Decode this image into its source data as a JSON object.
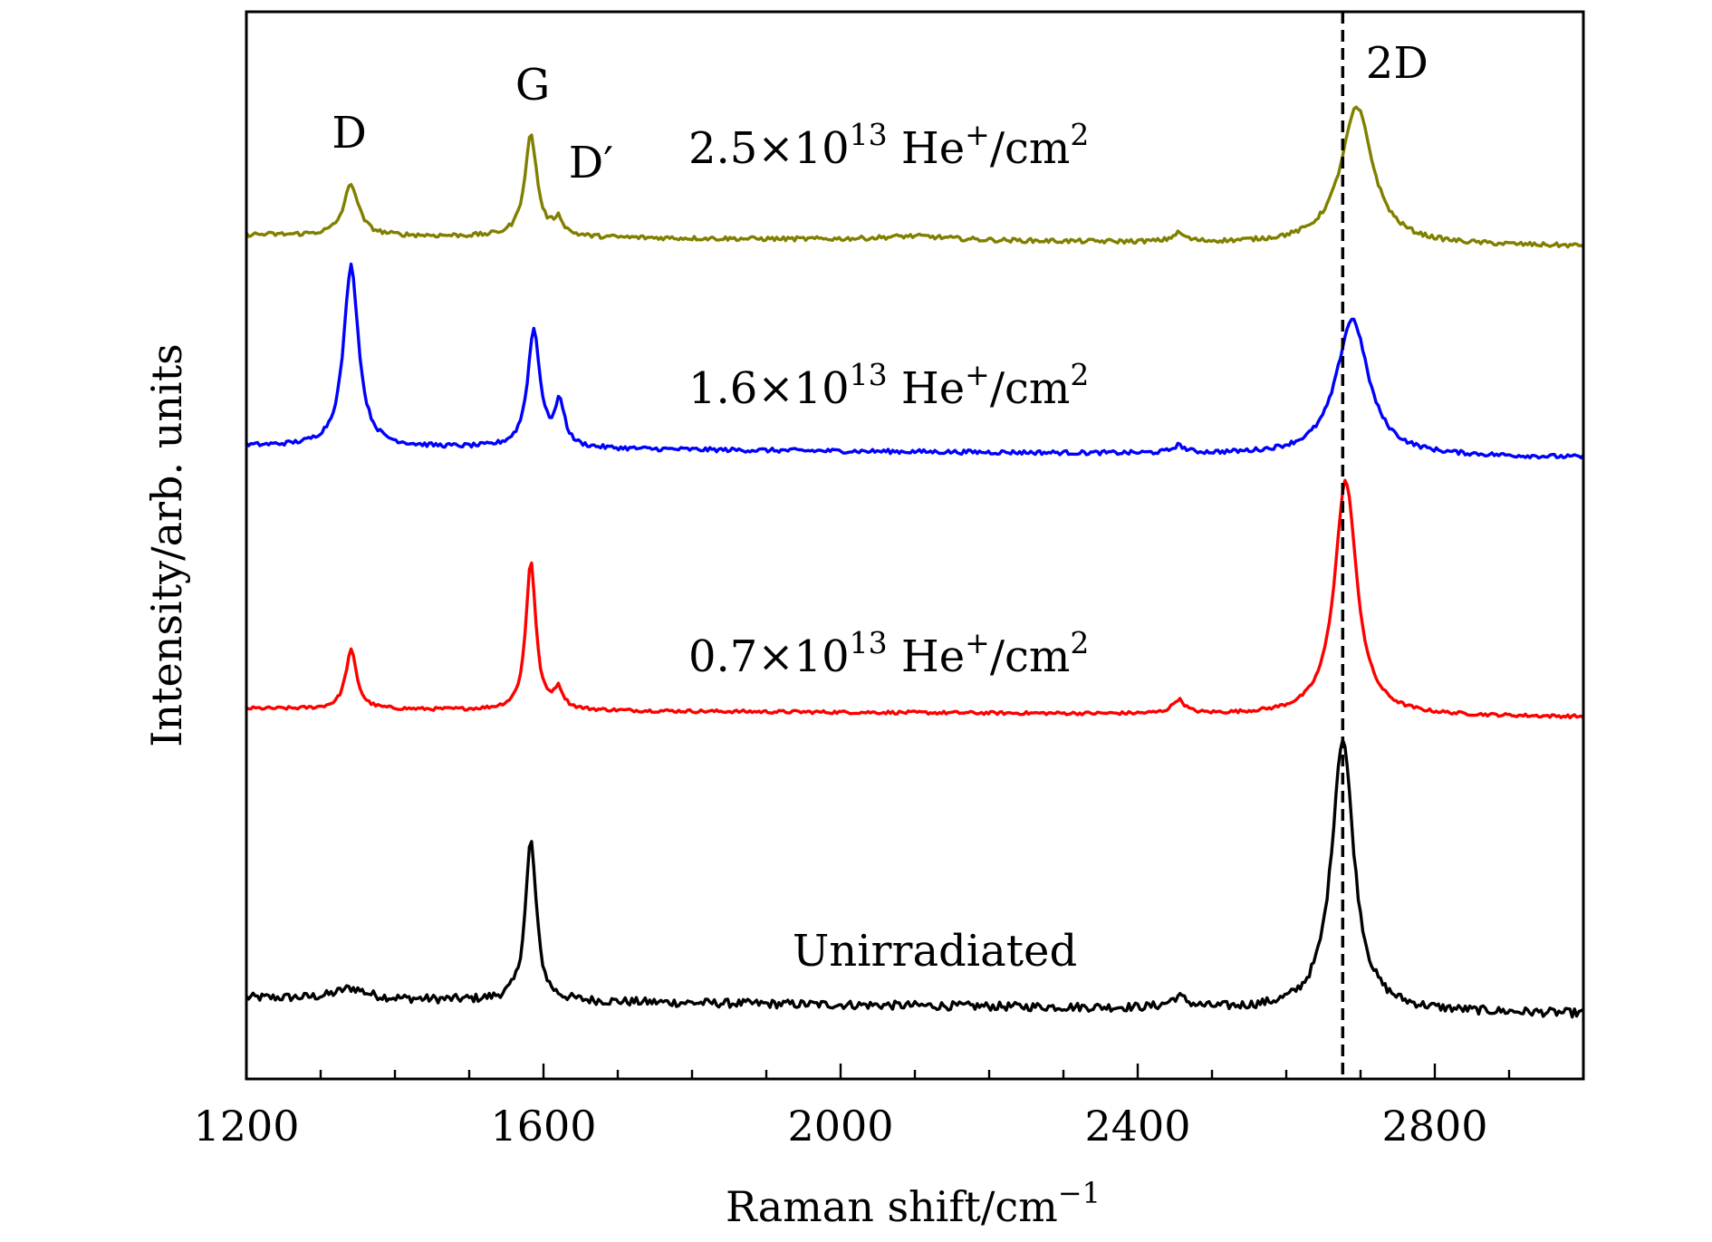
{
  "chart_data": {
    "type": "line",
    "xlabel": "Raman shift/cm",
    "xlabel_sup": "−1",
    "ylabel": "Intensity/arb. units",
    "xlim": [
      1200,
      3000
    ],
    "ylim": [
      0,
      1
    ],
    "x_ticks": [
      "1200",
      "1600",
      "2000",
      "2400",
      "2800"
    ],
    "x_tick_values": [
      1200,
      1600,
      2000,
      2400,
      2800
    ],
    "x_minor_step": 100,
    "y_ticks_shown": false,
    "reference_line": {
      "x": 2676,
      "style": "dashed",
      "label": "2D"
    },
    "peak_labels": [
      {
        "text": "D",
        "x": 1341
      },
      {
        "text": "G",
        "x": 1583
      },
      {
        "text": "D′",
        "x": 1620
      },
      {
        "text": "2D",
        "x": 2676
      }
    ],
    "series": [
      {
        "name": "Unirradiated",
        "label_parts": {
          "text": "Unirradiated"
        },
        "color": "#000000",
        "baseline": 0.076,
        "baseline_end": 0.061,
        "noise": 0.004,
        "peaks": [
          {
            "center": 1341,
            "height": 0.01,
            "width": 25
          },
          {
            "center": 1583,
            "height": 0.15,
            "width": 9
          },
          {
            "center": 2455,
            "height": 0.01,
            "width": 14
          },
          {
            "center": 2676,
            "height": 0.255,
            "width": 18
          }
        ]
      },
      {
        "name": "0.7×10^13 He+/cm2",
        "label_parts": {
          "mantissa": "0.7",
          "exp": "13",
          "ion": "He",
          "charge": "+",
          "unit": "/cm",
          "unit_exp": "2"
        },
        "color": "#ff0000",
        "baseline": 0.347,
        "baseline_end": 0.339,
        "noise": 0.0015,
        "peaks": [
          {
            "center": 1341,
            "height": 0.055,
            "width": 9
          },
          {
            "center": 1583,
            "height": 0.14,
            "width": 8
          },
          {
            "center": 1620,
            "height": 0.018,
            "width": 8
          },
          {
            "center": 2455,
            "height": 0.013,
            "width": 10
          },
          {
            "center": 2680,
            "height": 0.22,
            "width": 18
          }
        ]
      },
      {
        "name": "1.6×10^13 He+/cm2",
        "label_parts": {
          "mantissa": "1.6",
          "exp": "13",
          "ion": "He",
          "charge": "+",
          "unit": "/cm",
          "unit_exp": "2"
        },
        "color": "#0000ff",
        "baseline": 0.593,
        "baseline_end": 0.582,
        "noise": 0.002,
        "peaks": [
          {
            "center": 1341,
            "height": 0.17,
            "width": 12
          },
          {
            "center": 1587,
            "height": 0.11,
            "width": 10
          },
          {
            "center": 1622,
            "height": 0.04,
            "width": 8
          },
          {
            "center": 2455,
            "height": 0.007,
            "width": 10
          },
          {
            "center": 2689,
            "height": 0.128,
            "width": 26
          }
        ]
      },
      {
        "name": "2.5×10^13 He+/cm2",
        "label_parts": {
          "mantissa": "2.5",
          "exp": "13",
          "ion": "He",
          "charge": "+",
          "unit": "/cm",
          "unit_exp": "2"
        },
        "color": "#808000",
        "baseline": 0.791,
        "baseline_end": 0.78,
        "noise": 0.002,
        "peaks": [
          {
            "center": 1341,
            "height": 0.048,
            "width": 12
          },
          {
            "center": 1583,
            "height": 0.095,
            "width": 10
          },
          {
            "center": 1620,
            "height": 0.015,
            "width": 8
          },
          {
            "center": 2100,
            "height": 0.004,
            "width": 60
          },
          {
            "center": 2455,
            "height": 0.008,
            "width": 10
          },
          {
            "center": 2695,
            "height": 0.128,
            "width": 26
          }
        ]
      }
    ]
  }
}
